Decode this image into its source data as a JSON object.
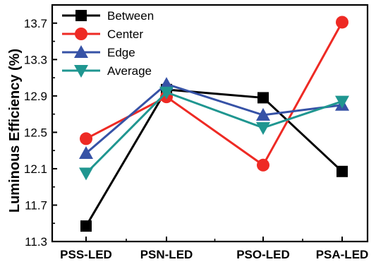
{
  "chart_data": {
    "type": "line",
    "title": "",
    "xlabel": "",
    "ylabel": "Luminous Efficiency (%)",
    "categories": [
      "PSS-LED",
      "PSN-LED",
      "PSO-LED",
      "PSA-LED"
    ],
    "ylim": [
      11.3,
      13.9
    ],
    "yticks": [
      "11.3",
      "11.7",
      "12.1",
      "12.5",
      "12.9",
      "13.3",
      "13.7"
    ],
    "legend_position": "top-left",
    "grid": false,
    "series": [
      {
        "name": "Between",
        "values": [
          11.47,
          12.97,
          12.88,
          12.07
        ],
        "color": "#000000",
        "marker": "square"
      },
      {
        "name": "Center",
        "values": [
          12.43,
          12.89,
          12.14,
          13.71
        ],
        "color": "#ee2a24",
        "marker": "circle"
      },
      {
        "name": "Edge",
        "values": [
          12.27,
          13.03,
          12.69,
          12.8
        ],
        "color": "#3652a6",
        "marker": "triangle-up"
      },
      {
        "name": "Average",
        "values": [
          12.05,
          12.94,
          12.55,
          12.84
        ],
        "color": "#1f9690",
        "marker": "triangle-down"
      }
    ]
  }
}
